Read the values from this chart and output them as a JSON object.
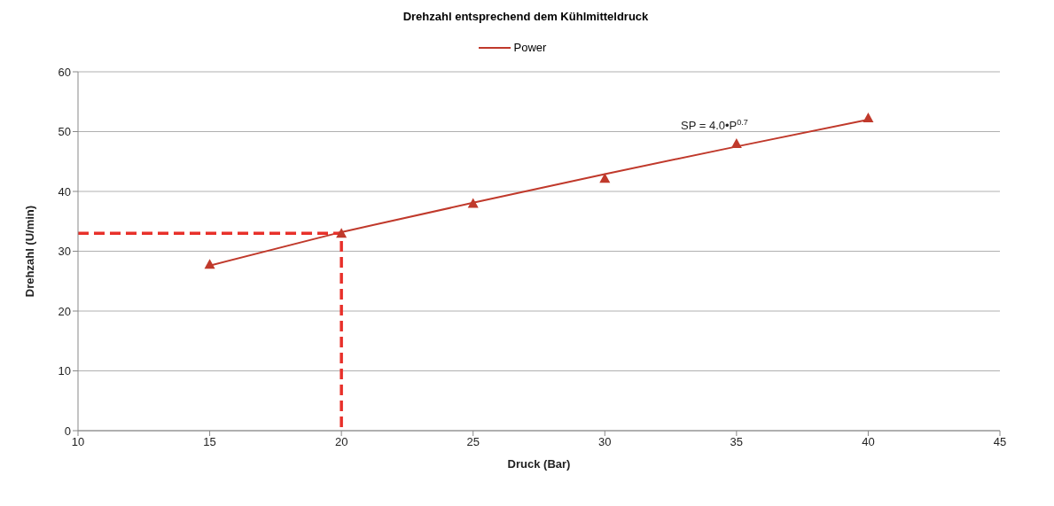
{
  "chart_data": {
    "type": "scatter",
    "title": "Drehzahl entsprechend dem Kühlmitteldruck",
    "xlabel": "Druck (Bar)",
    "ylabel": "Drehzahl (U/min)",
    "x": [
      15,
      20,
      25,
      30,
      35,
      40
    ],
    "series": [
      {
        "color": "#c0392b",
        "marker": "triangle",
        "values": [
          27.8,
          33,
          38,
          42.2,
          48,
          52.3
        ]
      },
      {
        "type": "line",
        "name": "Power",
        "color": "#c0392b",
        "marker": "none",
        "x": [
          15,
          20,
          25,
          30,
          35,
          40
        ],
        "values": [
          27.6,
          33.2,
          38.1,
          42.9,
          47.5,
          52
        ]
      },
      {
        "type": "line",
        "color": "#e8302a",
        "marker": "none",
        "line_style": "dashed",
        "x": [
          10,
          20,
          20
        ],
        "values": [
          33,
          33,
          0
        ]
      }
    ],
    "annotations": [
      "SP = 4.0•P$^{0.7}$"
    ],
    "xlim": [
      10,
      45
    ],
    "xticks": [
      10,
      15,
      20,
      25,
      30,
      35,
      40,
      45
    ],
    "ylim": [
      0,
      60
    ],
    "yticks": [
      0,
      10,
      20,
      30,
      40,
      50,
      60
    ],
    "grid": "y",
    "legend": "top"
  }
}
